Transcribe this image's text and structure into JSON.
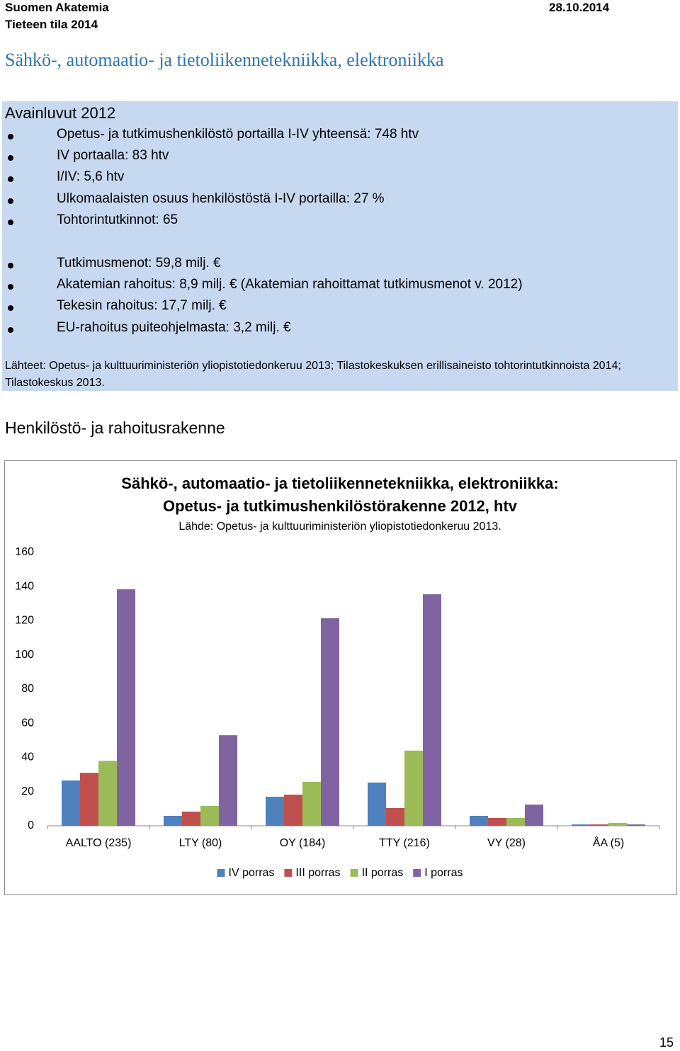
{
  "header": {
    "organization": "Suomen Akatemia",
    "report": "Tieteen tila 2014",
    "date": "28.10.2014"
  },
  "title": "Sähkö-, automaatio- ja tietoliikennetekniikka, elektroniikka",
  "key_figures": {
    "heading": "Avainluvut 2012",
    "staff_items": [
      "Opetus- ja tutkimushenkilöstö portailla I-IV yhteensä: 748 htv",
      "IV portaalla: 83 htv",
      "I/IV: 5,6 htv",
      "Ulkomaalaisten osuus henkilöstöstä I-IV portailla: 27 %",
      "Tohtorintutkinnot: 65"
    ],
    "funding_items": [
      "Tutkimusmenot: 59,8 milj. €",
      "Akatemian rahoitus: 8,9 milj. € (Akatemian rahoittamat tutkimusmenot v. 2012)",
      "Tekesin rahoitus: 17,7 milj. €",
      "EU-rahoitus puiteohjelmasta: 3,2 milj. €"
    ],
    "sources": "Lähteet: Opetus- ja kulttuuriministeriön yliopistotiedonkeruu 2013; Tilastokeskuksen erillisaineisto tohtorintutkinnoista 2014; Tilastokeskus 2013."
  },
  "section_heading": "Henkilöstö- ja rahoitusrakenne",
  "chart_data": {
    "type": "bar",
    "title": [
      "Sähkö-, automaatio- ja tietoliikennetekniikka, elektroniikka:",
      "Opetus- ja tutkimushenkilöstörakenne 2012, htv"
    ],
    "subtitle": "Lähde: Opetus- ja kulttuuriministeriön yliopistotiedonkeruu 2013.",
    "categories": [
      "AALTO (235)",
      "LTY (80)",
      "OY (184)",
      "TTY (216)",
      "VY (28)",
      "ÅA (5)"
    ],
    "series": [
      {
        "name": "IV porras",
        "color": "#4f81bd",
        "values": [
          26.5,
          5.8,
          17,
          25.3,
          5.8,
          0.8
        ]
      },
      {
        "name": "III porras",
        "color": "#c0504d",
        "values": [
          31,
          8.3,
          18.2,
          10.4,
          4.6,
          0.8
        ]
      },
      {
        "name": "II porras",
        "color": "#9bbb59",
        "values": [
          38,
          11.6,
          25.7,
          44,
          4.6,
          1.7
        ]
      },
      {
        "name": "I porras",
        "color": "#8064a2",
        "values": [
          138.4,
          53,
          121.5,
          135.5,
          12.4,
          0.8
        ]
      }
    ],
    "ylim": [
      0,
      160
    ],
    "yticks": [
      0,
      20,
      40,
      60,
      80,
      100,
      120,
      140,
      160
    ],
    "grid": false,
    "legend": "bottom"
  },
  "page_number": "15"
}
